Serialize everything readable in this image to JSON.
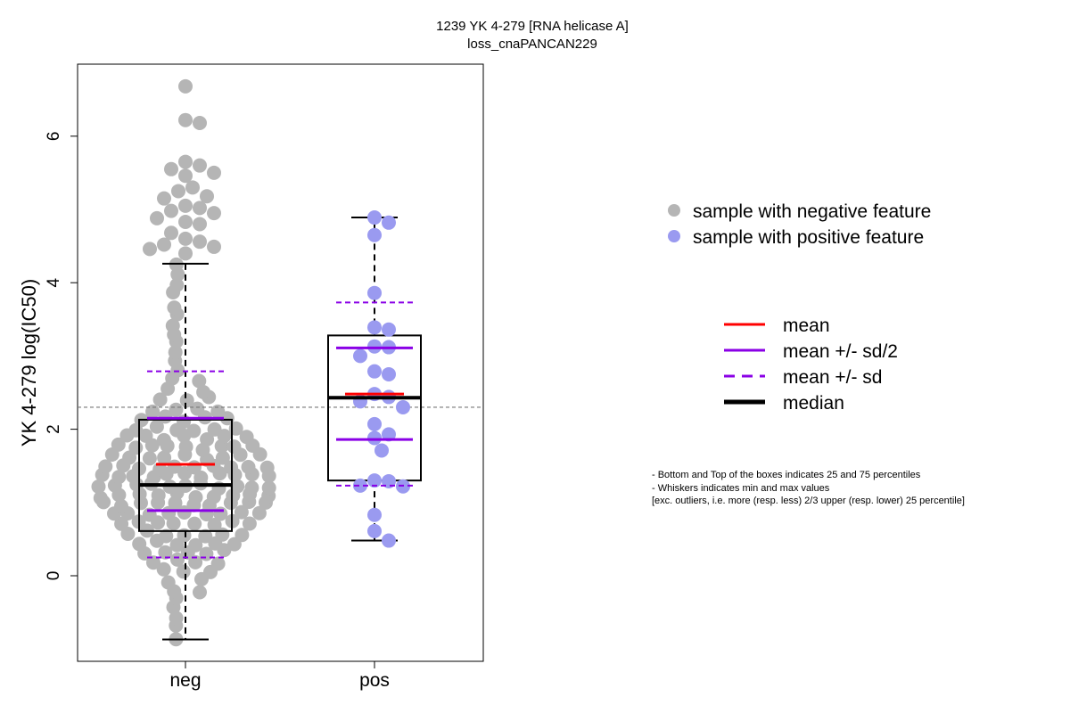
{
  "chart_data": {
    "type": "boxplot",
    "title": "1239 YK 4-279 [RNA helicase A]",
    "subtitle": "loss_cnaPANCAN229",
    "ylabel": "YK 4-279 log(IC50)",
    "xlabel": "",
    "ylim": [
      -1.15,
      6.9
    ],
    "yticks": [
      0,
      2,
      4,
      6
    ],
    "reference_line": 2.3,
    "groups": [
      {
        "name": "neg",
        "color": "#b5b5b5",
        "q1": 0.61,
        "median": 1.24,
        "q3": 2.13,
        "whisker_low": -0.87,
        "whisker_high": 4.26,
        "mean": 1.52,
        "mean_minus_half_sd": 0.89,
        "mean_plus_half_sd": 2.15,
        "mean_minus_sd": 0.25,
        "mean_plus_sd": 2.79,
        "points": [
          6.68,
          6.22,
          6.18,
          5.65,
          5.6,
          5.55,
          5.5,
          5.46,
          5.3,
          5.25,
          5.18,
          5.15,
          5.05,
          5.02,
          4.98,
          4.95,
          4.88,
          4.83,
          4.8,
          4.68,
          4.6,
          4.56,
          4.52,
          4.49,
          4.46,
          4.4
        ]
      },
      {
        "name": "pos",
        "color": "#9a9af0",
        "q1": 1.3,
        "median": 2.43,
        "q3": 3.28,
        "whisker_low": 0.48,
        "whisker_high": 4.89,
        "mean": 2.48,
        "mean_minus_half_sd": 1.86,
        "mean_plus_half_sd": 3.11,
        "mean_minus_sd": 1.23,
        "mean_plus_sd": 3.73,
        "points": [
          4.89,
          4.82,
          4.65,
          3.86,
          3.39,
          3.36,
          3.13,
          3.12,
          3.0,
          2.79,
          2.75,
          2.48,
          2.44,
          2.38,
          2.3,
          2.07,
          1.93,
          1.88,
          1.71,
          1.3,
          1.29,
          1.23,
          1.22,
          0.83,
          0.61,
          0.48
        ]
      }
    ],
    "legend": {
      "placement": "right",
      "points": [
        {
          "label": "sample with negative feature",
          "color": "#b5b5b5"
        },
        {
          "label": "sample with positive feature",
          "color": "#9a9af0"
        }
      ],
      "lines": [
        {
          "label": "mean",
          "color": "#ff0000",
          "style": "solid"
        },
        {
          "label": "mean +/- sd/2",
          "color": "#8a00e6",
          "style": "solid"
        },
        {
          "label": "mean +/- sd",
          "color": "#8a00e6",
          "style": "dashed"
        },
        {
          "label": "median",
          "color": "#000000",
          "style": "bold"
        }
      ]
    },
    "notes": [
      "- Bottom and Top of the boxes indicates 25 and 75 percentiles",
      "- Whiskers indicates min and max values",
      "[exc. outliers, i.e. more (resp. less) 2/3 upper (resp. lower) 25 percentile]"
    ]
  }
}
